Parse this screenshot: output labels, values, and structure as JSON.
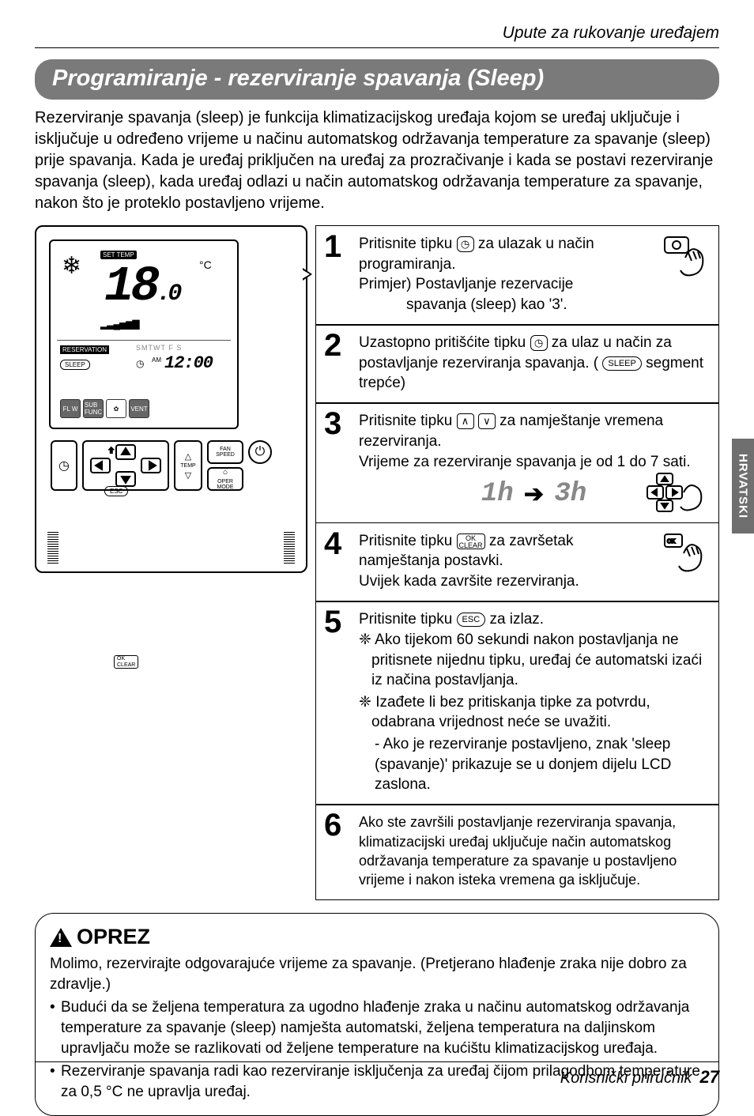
{
  "page": {
    "running_header": "Upute za rukovanje uređajem",
    "section_title": "Programiranje - rezerviranje spavanja (Sleep)",
    "intro": "Rezerviranje spavanja (sleep) je funkcija  klimatizacijskog uređaja kojom se uređaj uključuje i isključuje u određeno vrijeme u načinu automatskog održavanja temperature za spavanje (sleep) prije spavanja. Kada je uređaj priključen na uređaj za prozračivanje i kada se postavi rezerviranje spavanja (sleep), kada uređaj odlazi u način automatskog održavanja temperature za spavanje, nakon što je proteklo postavljeno vrijeme.",
    "side_tab": "HRVATSKI",
    "footer_title": "Korisnički priručnik",
    "footer_page": "27"
  },
  "remote": {
    "set_temp_label": "SET TEMP",
    "temp_value": "18",
    "temp_decimal": ".0",
    "deg": "°C",
    "fan_bars": "▂▃▄▅▆▇",
    "reservation_label": "RESERVATION",
    "sleep_label": "SLEEP",
    "dow": "SMTWT F S",
    "am_label": "AM",
    "time": "12:00",
    "fn_flw": "FL W",
    "fn_sub": "SUB\nFUNC",
    "fn_gear": "✿",
    "fn_vent": "VENT",
    "fan_speed": "FAN\nSPEED",
    "temp_lbl": "TEMP",
    "oper_mode": "OPER\nMODE",
    "esc": "ESC",
    "ok_clear": "OK\nCLEAR"
  },
  "steps": {
    "s1": {
      "num": "1",
      "t1": "Pritisnite tipku ",
      "t2": " za ulazak u način programiranja.",
      "t3": "Primjer) Postavljanje rezervacije",
      "t4": "spavanja (sleep) kao '3'."
    },
    "s2": {
      "num": "2",
      "t1": "Uzastopno pritišćite tipku ",
      "t2": " za ulaz u način za postavljanje rezerviranja spavanja. ( ",
      "pill": "SLEEP",
      "t3": " segment trepće)"
    },
    "s3": {
      "num": "3",
      "t1": "Pritisnite tipku ",
      "t2": " za namještanje vremena rezerviranja.",
      "t3": "Vrijeme za rezerviranje spavanja je od 1 do 7 sati.",
      "seg1": "1h",
      "seg2": "3h"
    },
    "s4": {
      "num": "4",
      "t1": "Pritisnite tipku ",
      "t2": " za završetak namještanja postavki.",
      "t3": "Uvijek kada završite rezerviranja."
    },
    "s5": {
      "num": "5",
      "t1": "Pritisnite tipku ",
      "pill": "ESC",
      "t2": " za izlaz.",
      "b1": "❈ Ako tijekom 60 sekundi nakon postavljanja ne pritisnete nijednu tipku, uređaj će automatski izaći iz načina postavljanja.",
      "b2": "❈ Izađete li bez pritiskanja tipke za potvrdu, odabrana vrijednost neće se uvažiti.",
      "b3": "- Ako je rezerviranje postavljeno, znak 'sleep (spavanje)' prikazuje se u donjem dijelu LCD zaslona."
    },
    "s6": {
      "num": "6",
      "t1": "Ako ste završili postavljanje rezerviranja spavanja, klimatizacijski uređaj uključuje način automatskog održavanja temperature za spavanje u postavljeno vrijeme i nakon isteka vremena ga isključuje."
    }
  },
  "caution": {
    "heading": "OPREZ",
    "lead": "Molimo, rezervirajte odgovarajuće vrijeme za spavanje. (Pretjerano hlađenje zraka nije dobro za zdravlje.)",
    "li1": "Budući da se željena temperatura za ugodno hlađenje zraka u načinu automatskog održavanja temperature za spavanje (sleep) namješta automatski, željena temperatura na daljinskom upravljaču može se razlikovati od željene temperature na kućištu klimatizacijskog uređaja.",
    "li2": "Rezerviranje spavanja radi kao rezerviranje isključenja za uređaj čijom prilagodbom temperature za 0,5 °C ne upravlja uređaj."
  },
  "colors": {
    "bar_bg": "#7a7a7a",
    "side_bg": "#6f6f6f",
    "seg_gray": "#888888",
    "page_bg": "#ffffff",
    "text": "#000000"
  }
}
